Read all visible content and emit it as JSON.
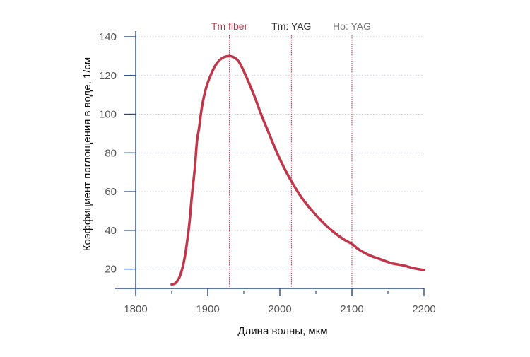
{
  "chart_data": {
    "type": "line",
    "title": "",
    "xlabel": "Длина волны, мкм",
    "ylabel": "Коэффициент поглощения в воде, 1/см",
    "xlim": [
      1800,
      2200
    ],
    "ylim": [
      10,
      140
    ],
    "x_ticks": [
      1800,
      1900,
      2000,
      2100,
      2200
    ],
    "x_tick_labels": [
      "1800",
      "1900",
      "2000",
      "2100",
      "2200"
    ],
    "y_ticks": [
      20,
      40,
      60,
      80,
      100,
      120,
      140
    ],
    "y_tick_labels": [
      "20",
      "40",
      "60",
      "80",
      "100",
      "120",
      "140"
    ],
    "grid": "horizontal dotted",
    "line_color": "#c0364a",
    "series": [
      {
        "x": [
          1850,
          1856,
          1862,
          1868,
          1874,
          1878,
          1882,
          1885,
          1888,
          1892,
          1898,
          1905,
          1912,
          1920,
          1930,
          1938,
          1945,
          1955,
          1965,
          1975,
          1985,
          1995,
          2005,
          2015,
          2030,
          2045,
          2060,
          2075,
          2090,
          2100,
          2110,
          2125,
          2140,
          2155,
          2170,
          2185,
          2200
        ],
        "y": [
          12,
          13,
          17,
          26,
          42,
          58,
          72,
          86,
          93,
          104,
          114,
          121,
          126,
          129,
          130,
          129,
          126,
          118,
          109,
          99,
          90,
          81,
          73,
          66,
          57,
          50,
          44,
          39,
          35,
          33,
          30,
          27,
          25,
          23,
          22,
          20.5,
          19.5
        ]
      }
    ],
    "markers": [
      {
        "x": 1930,
        "label": "Tm fiber",
        "color": "#c0364a"
      },
      {
        "x": 2016,
        "label": "Tm: YAG",
        "color": "#333333"
      },
      {
        "x": 2100,
        "label": "Ho: YAG",
        "color": "#777777"
      }
    ],
    "marker_line_color": "#c0364a",
    "axis_color": "#2b4a8a"
  }
}
